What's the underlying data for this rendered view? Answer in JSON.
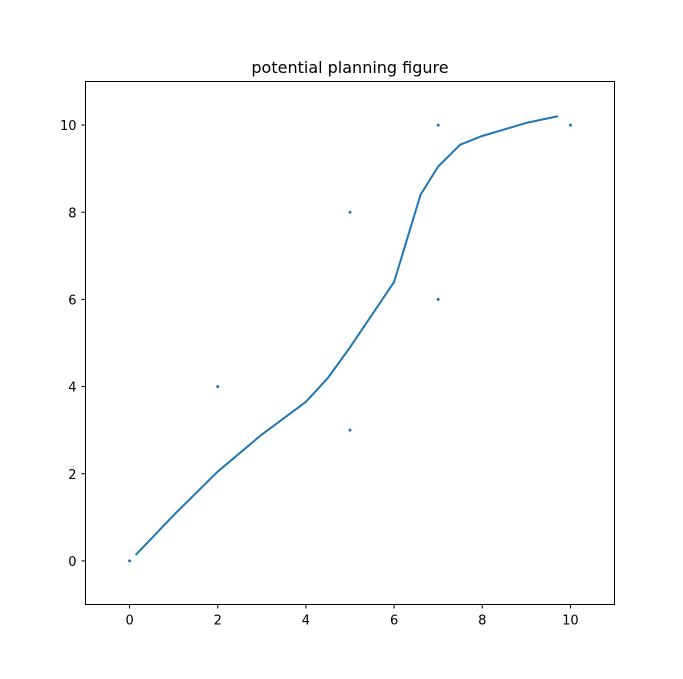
{
  "chart_data": {
    "type": "scatter",
    "title": "potential planning figure",
    "xlabel": "",
    "ylabel": "",
    "xlim": [
      -1,
      11
    ],
    "ylim": [
      -1,
      11
    ],
    "xticks": [
      0,
      2,
      4,
      6,
      8,
      10
    ],
    "yticks": [
      0,
      2,
      4,
      6,
      8,
      10
    ],
    "grid": false,
    "color": "#1f77b4",
    "series": [
      {
        "kind": "points",
        "points": [
          [
            0,
            0
          ],
          [
            2,
            4
          ],
          [
            5,
            3
          ],
          [
            5,
            8
          ],
          [
            7,
            6
          ],
          [
            7,
            10
          ],
          [
            10,
            10
          ]
        ]
      },
      {
        "kind": "line",
        "points": [
          [
            0.15,
            0.15
          ],
          [
            1.0,
            1.05
          ],
          [
            2.0,
            2.05
          ],
          [
            3.0,
            2.9
          ],
          [
            3.6,
            3.35
          ],
          [
            4.0,
            3.65
          ],
          [
            4.5,
            4.2
          ],
          [
            5.0,
            4.9
          ],
          [
            5.5,
            5.65
          ],
          [
            6.0,
            6.4
          ],
          [
            6.3,
            7.4
          ],
          [
            6.6,
            8.4
          ],
          [
            7.0,
            9.05
          ],
          [
            7.5,
            9.55
          ],
          [
            8.0,
            9.75
          ],
          [
            8.5,
            9.9
          ],
          [
            9.0,
            10.05
          ],
          [
            9.7,
            10.2
          ]
        ]
      }
    ]
  }
}
